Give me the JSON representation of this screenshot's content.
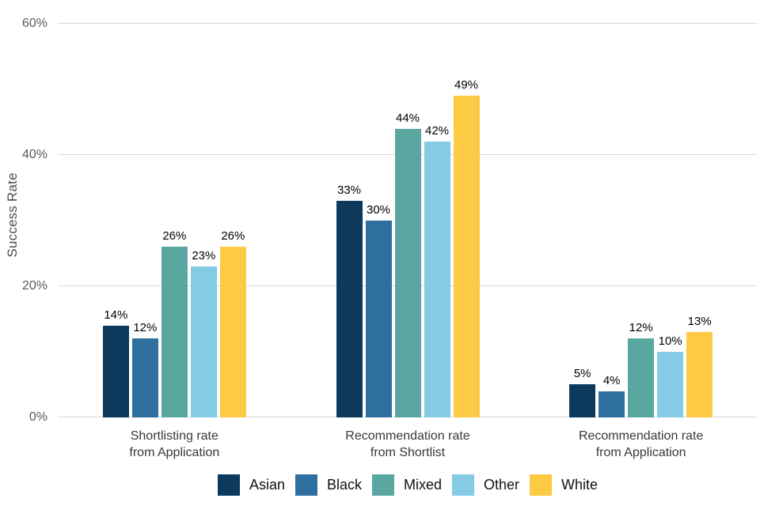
{
  "chart_data": {
    "type": "bar",
    "title": "",
    "ylabel": "Success Rate",
    "xlabel": "",
    "value_suffix": "%",
    "ylim": [
      0,
      60
    ],
    "grid": true,
    "legend_position": "bottom",
    "yticks": [
      {
        "value": 0,
        "label": "0%"
      },
      {
        "value": 20,
        "label": "20%"
      },
      {
        "value": 40,
        "label": "40%"
      },
      {
        "value": 60,
        "label": "60%"
      }
    ],
    "categories": [
      "Shortlisting rate\nfrom Application",
      "Recommendation rate\nfrom Shortlist",
      "Recommendation rate\nfrom Application"
    ],
    "series": [
      {
        "name": "Asian",
        "color": "#0d3a5c",
        "values": [
          14,
          33,
          5
        ]
      },
      {
        "name": "Black",
        "color": "#2f6f9f",
        "values": [
          12,
          30,
          4
        ]
      },
      {
        "name": "Mixed",
        "color": "#5aa7a2",
        "values": [
          26,
          44,
          12
        ]
      },
      {
        "name": "Other",
        "color": "#85cbe4",
        "values": [
          23,
          42,
          10
        ]
      },
      {
        "name": "White",
        "color": "#fdcb43",
        "values": [
          26,
          49,
          13
        ]
      }
    ]
  },
  "colors": {
    "background": "#ffffff",
    "gridline": "#d9d9d9",
    "tick_text": "#595959",
    "category_text": "#383838",
    "value_text": "#000000",
    "legend_text": "#111111",
    "axis_title_text": "#4d4d4d"
  }
}
